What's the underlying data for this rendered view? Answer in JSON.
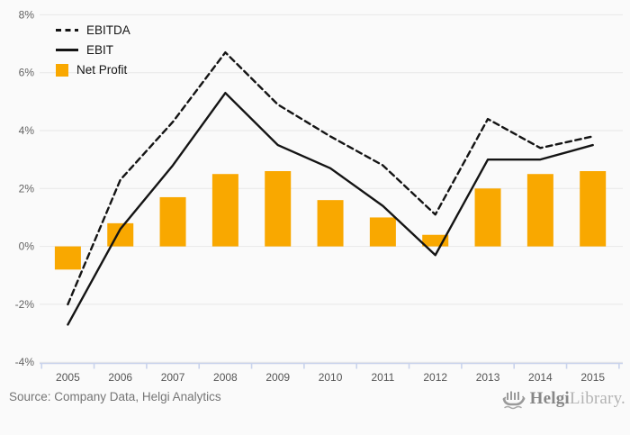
{
  "chart_data": {
    "type": "combo",
    "title": "",
    "xlabel": "",
    "ylabel": "",
    "categories": [
      "2005",
      "2006",
      "2007",
      "2008",
      "2009",
      "2010",
      "2011",
      "2012",
      "2013",
      "2014",
      "2015"
    ],
    "series": [
      {
        "name": "EBITDA",
        "type": "line",
        "style": "dashed",
        "color": "#141414",
        "values": [
          -2.0,
          2.3,
          4.3,
          6.7,
          4.9,
          3.8,
          2.8,
          1.1,
          4.4,
          3.4,
          3.8
        ]
      },
      {
        "name": "EBIT",
        "type": "line",
        "style": "solid",
        "color": "#141414",
        "values": [
          -2.7,
          0.6,
          2.8,
          5.3,
          3.5,
          2.7,
          1.4,
          -0.3,
          3.0,
          3.0,
          3.5
        ]
      },
      {
        "name": "Net Profit",
        "type": "bar",
        "color": "#F9A800",
        "values": [
          -0.8,
          0.8,
          1.7,
          2.5,
          2.6,
          1.6,
          1.0,
          0.4,
          2.0,
          2.5,
          2.6
        ]
      }
    ],
    "ylim": [
      -4,
      8
    ],
    "yticks": [
      8,
      6,
      4,
      2,
      0,
      -2,
      -4
    ],
    "ytick_suffix": "%",
    "grid": true,
    "legend_position": "top-left",
    "colors": {
      "grid": "#e7e7e7",
      "axis": "#c9d3ec",
      "ytick_label": "#636363",
      "xtick_label": "#565656",
      "background": "#fafafa"
    }
  },
  "footer": {
    "source_text": "Source: Company Data, Helgi Analytics",
    "logo": {
      "brand_bold": "Helgi",
      "brand_light": "Library.",
      "icon": "ship-icon"
    }
  }
}
